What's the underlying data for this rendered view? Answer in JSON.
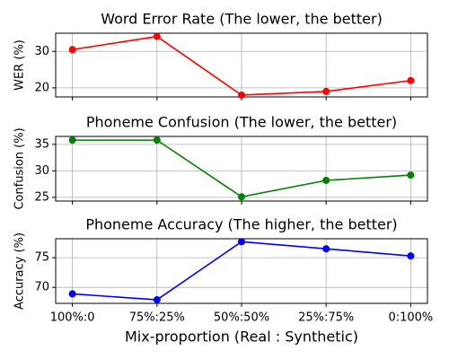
{
  "chart_data": [
    {
      "type": "line",
      "title": "Word Error Rate (The lower, the better)",
      "y_label": "WER (%)",
      "categories": [
        "100%:0",
        "75%:25%",
        "50%:50%",
        "25%:75%",
        "0:100%"
      ],
      "series": [
        {
          "name": "WER",
          "color": "#ff0000",
          "values": [
            30.5,
            34.1,
            18.0,
            19.0,
            22.0
          ]
        }
      ],
      "ylim": [
        17.5,
        35.0
      ],
      "yticks": [
        20,
        30
      ],
      "grid": true
    },
    {
      "type": "line",
      "title": "Phoneme Confusion (The lower, the better)",
      "y_label": "Confusion (%)",
      "categories": [
        "100%:0",
        "75%:25%",
        "50%:50%",
        "25%:75%",
        "0:100%"
      ],
      "series": [
        {
          "name": "Confusion",
          "color": "#008000",
          "values": [
            35.8,
            35.8,
            25.1,
            28.2,
            29.2
          ]
        }
      ],
      "ylim": [
        24.3,
        36.5
      ],
      "yticks": [
        25,
        30,
        35
      ],
      "grid": true
    },
    {
      "type": "line",
      "title": "Phoneme Accuracy (The higher, the better)",
      "y_label": "Accuracy (%)",
      "x_label": "Mix-proportion (Real : Synthetic)",
      "categories": [
        "100%:0",
        "75%:25%",
        "50%:50%",
        "25%:75%",
        "0:100%"
      ],
      "series": [
        {
          "name": "Accuracy",
          "color": "#0000ff",
          "values": [
            68.9,
            67.9,
            77.7,
            76.5,
            75.3
          ]
        }
      ],
      "ylim": [
        67.3,
        78.2
      ],
      "yticks": [
        70,
        75
      ],
      "grid": true
    }
  ]
}
